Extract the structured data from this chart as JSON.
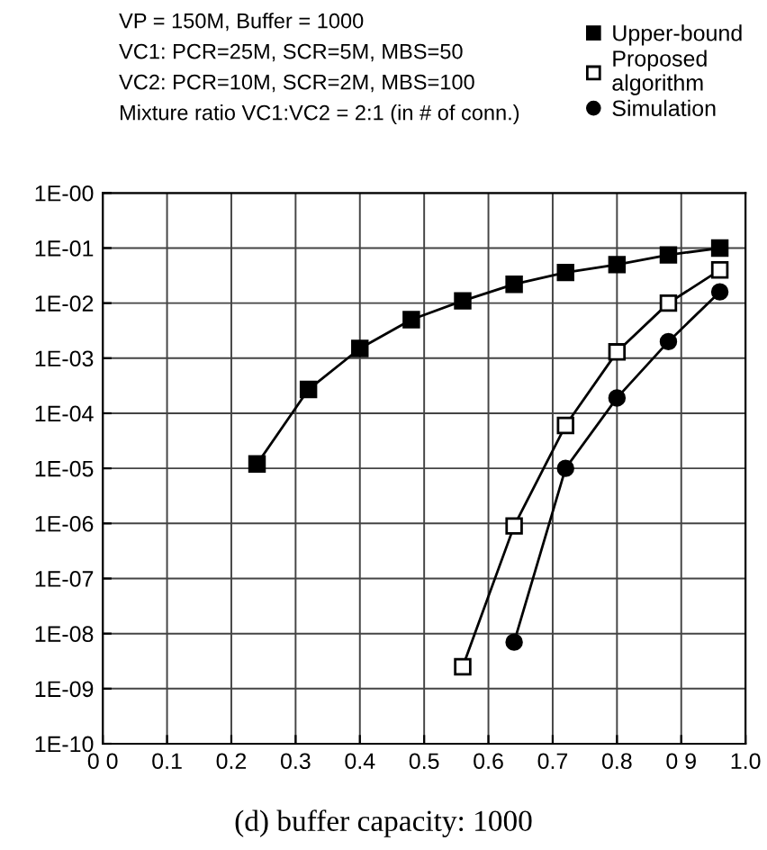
{
  "chart_data": {
    "type": "line",
    "title": "(d) buffer capacity: 1000",
    "annotations": [
      "VP = 150M, Buffer = 1000",
      "VC1: PCR=25M, SCR=5M, MBS=50",
      "VC2: PCR=10M, SCR=2M, MBS=100",
      "Mixture ratio VC1:VC2 = 2:1 (in # of conn.)"
    ],
    "series": [
      {
        "name": "Upper-bound",
        "color": "#000000",
        "marker": "square",
        "x": [
          0.24,
          0.32,
          0.4,
          0.48,
          0.56,
          0.64,
          0.72,
          0.8,
          0.88,
          0.96
        ],
        "values": [
          1.2e-05,
          0.00027,
          0.0015,
          0.005,
          0.011,
          0.022,
          0.036,
          0.05,
          0.075,
          0.1
        ]
      },
      {
        "name": "Proposed\nalgorithm",
        "color": "#ffffff",
        "marker": "square",
        "x": [
          0.56,
          0.64,
          0.72,
          0.8,
          0.88,
          0.96
        ],
        "values": [
          2.5e-09,
          9e-07,
          6e-05,
          0.0013,
          0.01,
          0.04
        ]
      },
      {
        "name": "Simulation",
        "color": "#000000",
        "marker": "circle",
        "x": [
          0.64,
          0.72,
          0.8,
          0.88,
          0.96
        ],
        "values": [
          7e-09,
          1e-05,
          0.00019,
          0.002,
          0.016
        ]
      }
    ],
    "log": "y",
    "grid": true,
    "legend": "top right",
    "xlim": [
      0.0,
      1.0
    ],
    "xticks": [
      {
        "value": 0.0,
        "label": "0 0"
      },
      0.1,
      0.2,
      0.3,
      0.4,
      0.5,
      0.6,
      0.7,
      0.8,
      {
        "value": 0.9,
        "label": "0 9"
      },
      {
        "value": 1.0,
        "label": "1.0"
      }
    ],
    "ylim": [
      1e-10,
      1
    ],
    "yticks": [
      {
        "value": 1e-10,
        "label": "1E-10"
      },
      {
        "value": 1e-09,
        "label": "1E-09"
      },
      {
        "value": 1e-08,
        "label": "1E-08"
      },
      {
        "value": 1e-07,
        "label": "1E-07"
      },
      {
        "value": 1e-06,
        "label": "1E-06"
      },
      {
        "value": 1e-05,
        "label": "1E-05"
      },
      {
        "value": 0.0001,
        "label": "1E-04"
      },
      {
        "value": 0.001,
        "label": "1E-03"
      },
      {
        "value": 0.01,
        "label": "1E-02"
      },
      {
        "value": 0.1,
        "label": "1E-01"
      },
      {
        "value": 1,
        "label": "1E-00"
      }
    ]
  }
}
